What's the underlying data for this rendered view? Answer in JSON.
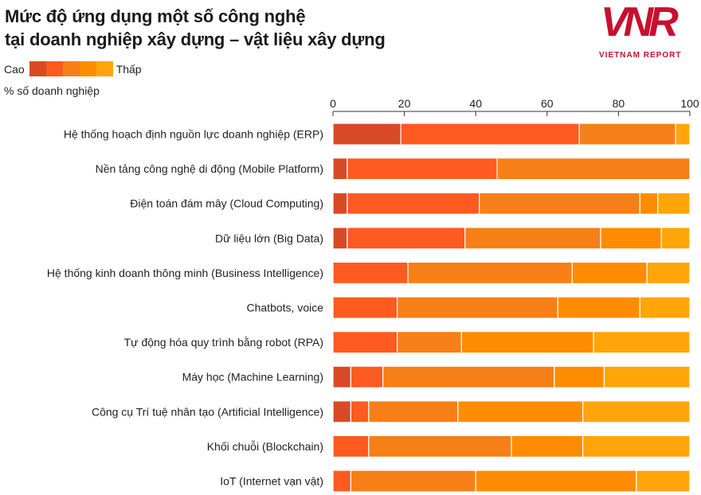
{
  "title_lines": [
    "Mức độ ứng dụng một số công nghệ",
    "tại doanh nghiệp xây dựng – vật liệu xây dựng"
  ],
  "legend": {
    "high": "Cao",
    "low": "Thấp",
    "colors": [
      "#d84a25",
      "#ff5a1f",
      "#f77f17",
      "#ff8c00",
      "#ffa50a"
    ]
  },
  "unit_label": "% số doanh nghiệp",
  "logo": {
    "text": "VNR",
    "subtitle": "VIETNAM REPORT"
  },
  "chart_data": {
    "type": "bar",
    "orientation": "horizontal",
    "stacked": true,
    "xlim": [
      0,
      100
    ],
    "xticks": [
      0,
      20,
      40,
      60,
      80,
      100
    ],
    "ylabel": "",
    "xlabel": "% số doanh nghiệp",
    "legend_placement": "top-left",
    "categories": [
      "Hệ thống hoạch định nguồn lực doanh nghiệp (ERP)",
      "Nền tảng công nghệ di động (Mobile Platform)",
      "Điện toán đám mây (Cloud Computing)",
      "Dữ liệu lớn (Big Data)",
      "Hệ thống kinh doanh thông minh (Business Intelligence)",
      "Chatbots, voice",
      "Tự động hóa quy trình bằng robot (RPA)",
      "Máy học (Machine Learning)",
      "Công cụ Trí tuệ nhân tạo (Artificial Intelligence)",
      "Khối chuỗi (Blockchain)",
      "IoT (Internet vạn vật)"
    ],
    "series": [
      {
        "values": [
          19,
          4,
          4,
          4,
          0,
          0,
          0,
          5,
          5,
          0,
          0
        ]
      },
      {
        "values": [
          50,
          42,
          37,
          33,
          21,
          18,
          18,
          9,
          5,
          10,
          5
        ]
      },
      {
        "values": [
          27,
          54,
          45,
          38,
          46,
          45,
          18,
          48,
          25,
          40,
          35
        ]
      },
      {
        "values": [
          0,
          0,
          5,
          17,
          21,
          23,
          37,
          14,
          35,
          20,
          45
        ]
      },
      {
        "values": [
          4,
          0,
          9,
          8,
          12,
          14,
          27,
          24,
          30,
          30,
          15
        ]
      }
    ]
  }
}
